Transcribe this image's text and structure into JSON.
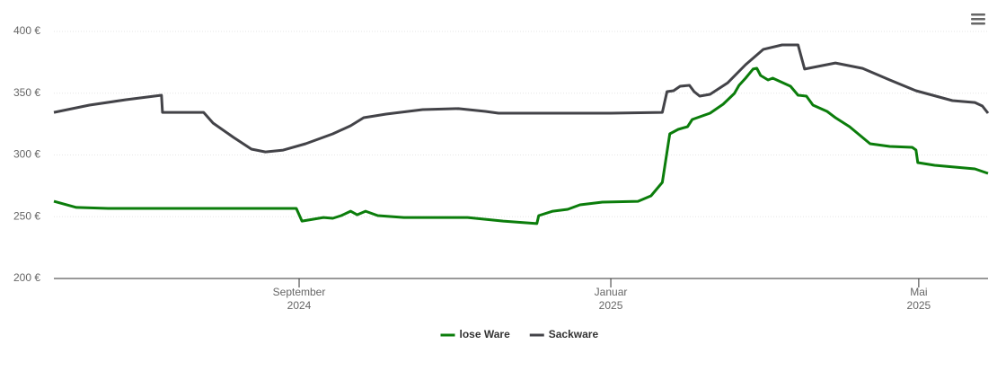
{
  "chart_data": {
    "type": "line",
    "xlim": [
      2024.405,
      2025.403
    ],
    "xticks": [
      {
        "value": 2024.667,
        "label": "September\n2024"
      },
      {
        "value": 2025.0,
        "label": "Januar\n2025"
      },
      {
        "value": 2025.329,
        "label": "Mai\n2025"
      }
    ],
    "ylim": [
      200,
      400
    ],
    "yticks": [
      {
        "value": 200,
        "label": "200 €"
      },
      {
        "value": 250,
        "label": "250 €"
      },
      {
        "value": 300,
        "label": "300 €"
      },
      {
        "value": 350,
        "label": "350 €"
      },
      {
        "value": 400,
        "label": "400 €"
      }
    ],
    "grid": true,
    "legend": "bottom",
    "series": [
      {
        "name": "lose Ware",
        "color": "#0b7d0b",
        "x": [
          2024.405,
          2024.429,
          2024.463,
          2024.664,
          2024.67,
          2024.693,
          2024.703,
          2024.712,
          2024.722,
          2024.729,
          2024.738,
          2024.751,
          2024.779,
          2024.847,
          2024.885,
          2024.921,
          2024.923,
          2024.938,
          2024.954,
          2024.967,
          2024.991,
          2025.029,
          2025.043,
          2025.055,
          2025.063,
          2025.072,
          2025.082,
          2025.087,
          2025.106,
          2025.12,
          2025.132,
          2025.137,
          2025.144,
          2025.152,
          2025.156,
          2025.16,
          2025.168,
          2025.173,
          2025.192,
          2025.2,
          2025.209,
          2025.216,
          2025.231,
          2025.24,
          2025.255,
          2025.277,
          2025.298,
          2025.322,
          2025.326,
          2025.328,
          2025.346,
          2025.389,
          2025.403
        ],
        "values": [
          262.5,
          257.5,
          256.7,
          256.7,
          246.5,
          249.4,
          248.7,
          250.9,
          254.5,
          251.6,
          254.5,
          250.9,
          249.4,
          249.4,
          246.5,
          244.4,
          250.9,
          254.5,
          256.0,
          259.6,
          261.8,
          262.5,
          266.9,
          277.8,
          317.1,
          320.7,
          322.9,
          328.7,
          333.8,
          341.1,
          349.8,
          356.4,
          362.2,
          369.5,
          370.2,
          364.4,
          360.7,
          362.2,
          355.6,
          348.4,
          347.6,
          340.4,
          335.3,
          330.2,
          322.9,
          309.1,
          306.9,
          306.2,
          304.0,
          293.8,
          291.6,
          288.7,
          285.1
        ]
      },
      {
        "name": "Sackware",
        "color": "#434348",
        "x": [
          2024.405,
          2024.443,
          2024.482,
          2024.52,
          2024.521,
          2024.565,
          2024.575,
          2024.597,
          2024.616,
          2024.631,
          2024.65,
          2024.674,
          2024.703,
          2024.722,
          2024.736,
          2024.76,
          2024.799,
          2024.837,
          2024.866,
          2024.88,
          2024.923,
          2025.0,
          2025.055,
          2025.06,
          2025.067,
          2025.074,
          2025.084,
          2025.089,
          2025.095,
          2025.106,
          2025.125,
          2025.144,
          2025.163,
          2025.183,
          2025.2,
          2025.207,
          2025.221,
          2025.24,
          2025.269,
          2025.298,
          2025.326,
          2025.365,
          2025.389,
          2025.397,
          2025.403
        ],
        "values": [
          334.5,
          340.4,
          344.7,
          348.4,
          334.5,
          334.5,
          325.8,
          314.2,
          304.7,
          302.5,
          303.9,
          309.1,
          317.1,
          323.6,
          330.2,
          333.1,
          336.7,
          337.5,
          335.3,
          333.8,
          333.8,
          333.8,
          334.5,
          351.3,
          352.0,
          355.6,
          356.4,
          351.3,
          347.6,
          349.1,
          358.5,
          373.1,
          385.5,
          389.1,
          389.1,
          369.5,
          371.6,
          374.5,
          370.1,
          360.7,
          352.0,
          344.0,
          342.5,
          339.6,
          333.8
        ]
      }
    ]
  }
}
